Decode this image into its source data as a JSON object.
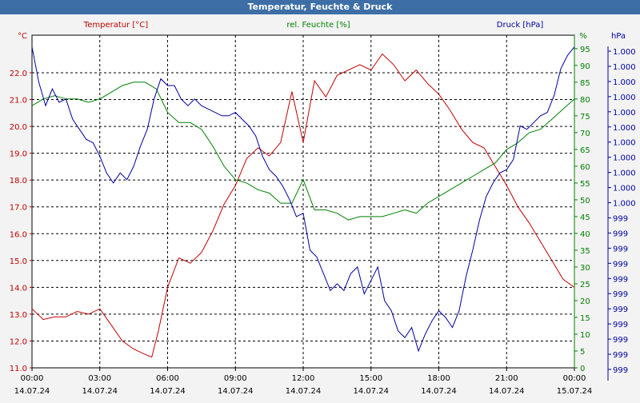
{
  "window": {
    "title": "Temperatur, Feuchte & Druck"
  },
  "chart_data": {
    "type": "line",
    "title": "Temperatur, Feuchte & Druck",
    "colors": {
      "temperature": "#c00000",
      "humidity": "#008000",
      "pressure": "#0000a0"
    },
    "x_ticks": [
      {
        "time": "00:00",
        "date": "14.07.24"
      },
      {
        "time": "03:00",
        "date": "14.07.24"
      },
      {
        "time": "06:00",
        "date": "14.07.24"
      },
      {
        "time": "09:00",
        "date": "14.07.24"
      },
      {
        "time": "12:00",
        "date": "14.07.24"
      },
      {
        "time": "15:00",
        "date": "14.07.24"
      },
      {
        "time": "18:00",
        "date": "14.07.24"
      },
      {
        "time": "21:00",
        "date": "14.07.24"
      },
      {
        "time": "00:00",
        "date": "15.07.24"
      }
    ],
    "xlim_hours": [
      0,
      24
    ],
    "axes": {
      "temperature": {
        "label": "Temperatur [°C]",
        "unit": "°C",
        "ylim": [
          11.0,
          23.4
        ],
        "ticks": [
          "11.0",
          "12.0",
          "13.0",
          "14.0",
          "15.0",
          "16.0",
          "17.0",
          "18.0",
          "19.0",
          "20.0",
          "21.0",
          "22.0"
        ]
      },
      "humidity": {
        "label": "rel. Feuchte [%]",
        "unit": "%",
        "ylim": [
          0,
          99
        ],
        "ticks": [
          "0",
          "5",
          "10",
          "15",
          "20",
          "25",
          "30",
          "35",
          "40",
          "45",
          "50",
          "55",
          "60",
          "65",
          "70",
          "75",
          "80",
          "85",
          "90",
          "95"
        ]
      },
      "pressure": {
        "label": "Druck [hPa]",
        "unit": "hPa",
        "ticks": [
          "999",
          "999",
          "999",
          "999",
          "999",
          "999",
          "999",
          "999",
          "999",
          "999",
          "999",
          "1.000",
          "1.000",
          "1.000",
          "1.000",
          "1.000",
          "1.000",
          "1.000",
          "1.000",
          "1.000",
          "1.000",
          "1.000"
        ]
      }
    },
    "series": [
      {
        "name": "Temperatur [°C]",
        "axis": "temperature",
        "x": [
          0,
          0.5,
          1,
          1.5,
          2,
          2.5,
          3,
          3.5,
          4,
          4.5,
          5,
          5.3,
          5.6,
          6,
          6.5,
          7,
          7.5,
          8,
          8.5,
          9,
          9.5,
          10,
          10.5,
          11,
          11.5,
          12,
          12.5,
          13,
          13.5,
          14,
          14.5,
          15,
          15.5,
          16,
          16.5,
          17,
          17.5,
          18,
          18.5,
          19,
          19.5,
          20,
          20.5,
          21,
          21.5,
          22,
          22.5,
          23,
          23.5,
          24
        ],
        "values": [
          13.2,
          12.8,
          12.9,
          12.9,
          13.1,
          13.0,
          13.2,
          12.6,
          12.0,
          11.7,
          11.5,
          11.4,
          12.4,
          14.0,
          15.1,
          14.9,
          15.3,
          16.1,
          17.1,
          17.8,
          18.8,
          19.2,
          18.9,
          19.4,
          21.3,
          19.4,
          21.7,
          21.1,
          21.9,
          22.1,
          22.3,
          22.1,
          22.7,
          22.3,
          21.7,
          22.1,
          21.6,
          21.2,
          20.6,
          19.9,
          19.4,
          19.2,
          18.5,
          17.8,
          17.0,
          16.4,
          15.7,
          15.0,
          14.3,
          14.0
        ]
      },
      {
        "name": "rel. Feuchte [%]",
        "axis": "humidity",
        "x": [
          0,
          0.5,
          1,
          1.5,
          2,
          2.5,
          3,
          3.5,
          4,
          4.5,
          5,
          5.5,
          6,
          6.5,
          7,
          7.5,
          8,
          8.5,
          9,
          9.5,
          10,
          10.5,
          11,
          11.5,
          12,
          12.5,
          13,
          13.5,
          14,
          14.5,
          15,
          15.5,
          16,
          16.5,
          17,
          17.5,
          18,
          18.5,
          19,
          19.5,
          20,
          20.5,
          21,
          21.5,
          22,
          22.5,
          23,
          23.5,
          24
        ],
        "values": [
          78,
          80,
          81,
          80,
          80,
          79,
          80,
          82,
          84,
          85,
          85,
          83,
          76,
          73,
          73,
          71,
          66,
          60,
          56,
          55,
          53,
          52,
          49,
          49,
          56,
          47,
          47,
          46,
          44,
          45,
          45,
          45,
          46,
          47,
          46,
          49,
          51,
          53,
          55,
          57,
          59,
          61,
          65,
          67,
          70,
          71,
          74,
          77,
          80
        ]
      },
      {
        "name": "Druck [hPa]",
        "axis": "pressure",
        "x": [
          0,
          0.3,
          0.6,
          0.9,
          1.2,
          1.5,
          1.8,
          2.1,
          2.4,
          2.7,
          3.0,
          3.3,
          3.6,
          3.9,
          4.2,
          4.5,
          4.8,
          5.1,
          5.4,
          5.7,
          6.0,
          6.3,
          6.6,
          6.9,
          7.2,
          7.5,
          7.8,
          8.1,
          8.4,
          8.7,
          9.0,
          9.3,
          9.6,
          9.9,
          10.2,
          10.5,
          10.8,
          11.1,
          11.4,
          11.7,
          12.0,
          12.3,
          12.6,
          12.9,
          13.2,
          13.5,
          13.8,
          14.1,
          14.4,
          14.7,
          15.0,
          15.3,
          15.6,
          15.9,
          16.2,
          16.5,
          16.8,
          17.1,
          17.4,
          17.7,
          18.0,
          18.3,
          18.6,
          18.9,
          19.2,
          19.5,
          19.8,
          20.1,
          20.4,
          20.7,
          21.0,
          21.3,
          21.6,
          21.9,
          22.2,
          22.5,
          22.8,
          23.1,
          23.4,
          23.7,
          24.0
        ],
        "values": [
          95.5,
          85,
          78,
          83,
          79,
          80,
          74,
          71,
          68,
          67,
          63,
          58,
          55,
          58,
          56,
          60,
          66,
          71,
          80,
          86,
          84,
          84,
          80,
          78,
          80,
          78,
          77,
          76,
          75,
          75,
          76,
          74,
          72,
          69,
          63,
          59,
          57,
          54,
          50,
          45,
          46,
          35,
          33,
          28,
          23,
          25,
          23,
          28,
          30,
          22,
          26,
          30,
          20,
          17,
          11,
          9,
          12,
          5,
          10,
          14,
          17,
          15,
          12,
          17,
          27,
          35,
          44,
          51,
          55,
          58,
          59,
          62,
          72,
          71,
          73,
          75,
          76,
          81,
          89,
          93,
          95.5
        ]
      }
    ],
    "grid": true,
    "legend": "top"
  }
}
